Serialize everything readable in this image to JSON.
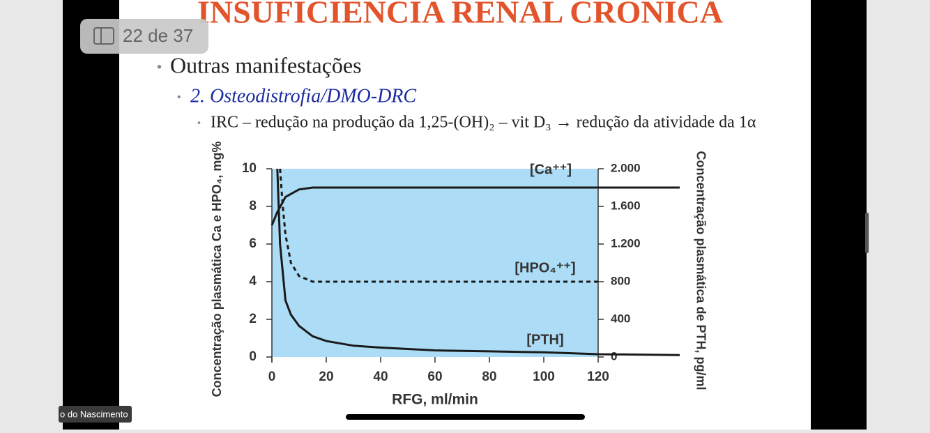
{
  "page_indicator": "22 de 37",
  "slide": {
    "title": "INSUFICIÊNCIA RENAL CRÔNICA",
    "bullet_1": "Outras manifestações",
    "bullet_2": "2. Osteodistrofia/DMO-DRC",
    "bullet_3": "IRC – redução na produção da 1,25-(OH)₂ – vit D₃ → redução da atividade da 1α"
  },
  "participant_name": "o do Nascimento",
  "chart_data": {
    "type": "line",
    "xlabel": "RFG, ml/min",
    "ylabel": "Concentração plasmática Ca e HPO₄, mg%",
    "y2label": "Concentração plasmática de PTH, pg/ml",
    "xlim": [
      0,
      120
    ],
    "xticks": [
      0,
      20,
      40,
      60,
      80,
      100,
      120
    ],
    "ylim": [
      0,
      10
    ],
    "yticks": [
      0,
      2,
      4,
      6,
      8,
      10
    ],
    "y2lim": [
      0,
      2000
    ],
    "y2ticks": [
      0,
      400,
      800,
      {
        "value": 1200,
        "label": "1.200"
      },
      {
        "value": 1600,
        "label": "1.600"
      },
      {
        "value": 2000,
        "label": "2.000"
      }
    ],
    "plot_background": "#acdcf6",
    "series": [
      {
        "name": "[Ca⁺⁺]",
        "color": "#1a1a1a",
        "dash": "solid",
        "x": [
          0,
          2,
          5,
          10,
          15,
          20,
          30,
          60,
          120,
          150
        ],
        "values": [
          7,
          7.7,
          8.5,
          8.9,
          9,
          9,
          9,
          9,
          9,
          9
        ]
      },
      {
        "name": "[HPO₄⁺⁺]",
        "color": "#1a1a1a",
        "dash": "dashed",
        "x": [
          3,
          4,
          5,
          7,
          10,
          15,
          20,
          40,
          80,
          120
        ],
        "values": [
          10,
          8,
          6.5,
          5,
          4.3,
          4,
          4,
          4,
          4,
          4
        ]
      },
      {
        "name": "[PTH]",
        "color": "#1a1a1a",
        "dash": "solid",
        "axis": "y2",
        "x": [
          2,
          3,
          5,
          7,
          10,
          15,
          20,
          30,
          40,
          60,
          80,
          100,
          120,
          150
        ],
        "values": [
          2000,
          1200,
          600,
          450,
          330,
          220,
          170,
          120,
          100,
          70,
          60,
          50,
          30,
          20
        ]
      }
    ]
  }
}
